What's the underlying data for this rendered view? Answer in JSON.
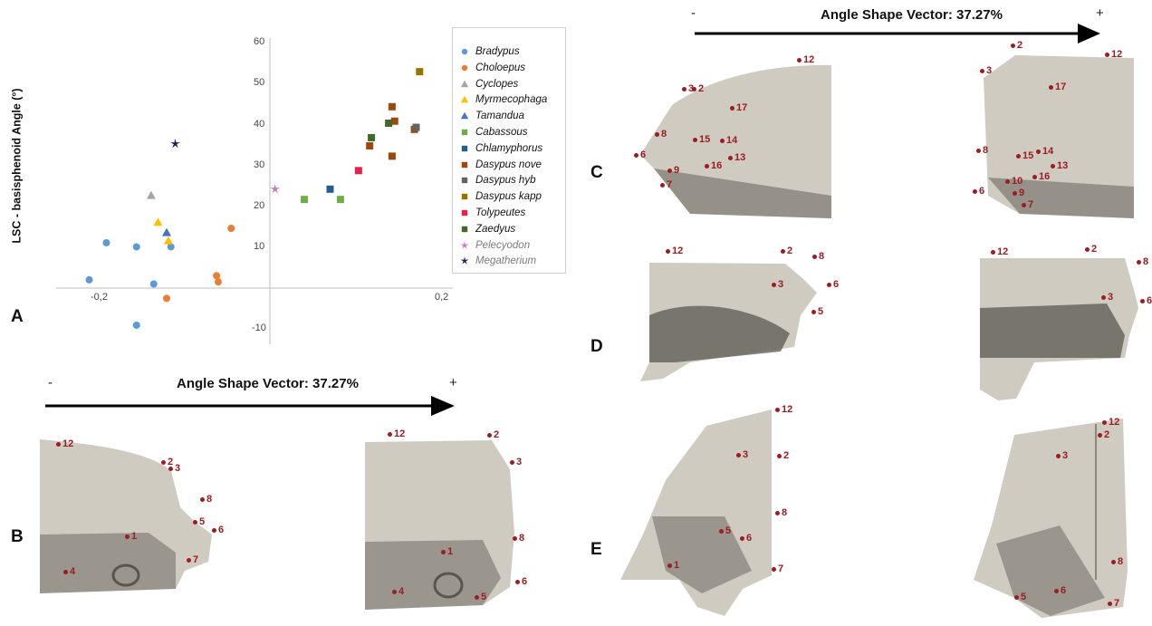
{
  "panels": {
    "A": "A",
    "B": "B",
    "C": "C",
    "D": "D",
    "E": "E"
  },
  "shape_vector": {
    "label": "Angle Shape Vector: 37.27%",
    "minus": "-",
    "plus": "+"
  },
  "chart_data": {
    "type": "scatter",
    "ylabel": "LSC - basisphenoid Angle (°)",
    "xlabel": "",
    "xlim": [
      -0.22,
      0.2
    ],
    "ylim": [
      -13,
      60
    ],
    "x_ticks": [
      "-0,2",
      "0,2"
    ],
    "y_ticks": [
      "60",
      "50",
      "40",
      "30",
      "20",
      "10",
      "-10"
    ],
    "legend_position": "right",
    "series": [
      {
        "name": "Bradypus",
        "marker": "circle",
        "color": "#5b9bd5",
        "points": [
          [
            -0.21,
            2
          ],
          [
            -0.19,
            11
          ],
          [
            -0.155,
            10
          ],
          [
            -0.135,
            1
          ],
          [
            -0.115,
            10
          ],
          [
            -0.155,
            -9
          ]
        ]
      },
      {
        "name": "Choloepus",
        "marker": "circle",
        "color": "#ed7d31",
        "points": [
          [
            -0.12,
            -2.5
          ],
          [
            -0.062,
            3
          ],
          [
            -0.06,
            1.5
          ],
          [
            -0.045,
            14.5
          ]
        ]
      },
      {
        "name": "Cyclopes",
        "marker": "triangle",
        "color": "#a5a5a5",
        "points": [
          [
            -0.138,
            22.5
          ]
        ]
      },
      {
        "name": "Myrmecophaga",
        "marker": "triangle",
        "color": "#ffc000",
        "points": [
          [
            -0.13,
            16
          ],
          [
            -0.118,
            11.5
          ]
        ]
      },
      {
        "name": "Tamandua",
        "marker": "triangle",
        "color": "#4472c4",
        "points": [
          [
            -0.12,
            13.5
          ]
        ]
      },
      {
        "name": "Cabassous",
        "marker": "square",
        "color": "#70ad47",
        "points": [
          [
            0.04,
            21.5
          ],
          [
            0.082,
            21.5
          ]
        ]
      },
      {
        "name": "Chlamyphorus",
        "marker": "square",
        "color": "#255e91",
        "points": [
          [
            0.07,
            24
          ]
        ]
      },
      {
        "name": "Dasypus nove",
        "marker": "square",
        "color": "#9e480e",
        "points": [
          [
            0.116,
            34.5
          ],
          [
            0.142,
            44
          ],
          [
            0.145,
            40.5
          ],
          [
            0.142,
            32
          ],
          [
            0.168,
            38.5
          ]
        ]
      },
      {
        "name": "Dasypus hyb",
        "marker": "square",
        "color": "#636363",
        "points": [
          [
            0.17,
            39
          ]
        ]
      },
      {
        "name": "Dasypus kapp",
        "marker": "square",
        "color": "#997300",
        "points": [
          [
            0.174,
            52.5
          ]
        ]
      },
      {
        "name": "Tolypeutes",
        "marker": "square",
        "color": "#e8214a",
        "points": [
          [
            0.103,
            28.5
          ]
        ]
      },
      {
        "name": "Zaedyus",
        "marker": "square",
        "color": "#43682b",
        "points": [
          [
            0.118,
            36.5
          ],
          [
            0.138,
            40
          ]
        ]
      },
      {
        "name": "Pelecyodon",
        "marker": "star",
        "color": "#c875c4",
        "fossil": true,
        "points": [
          [
            0.006,
            24
          ]
        ]
      },
      {
        "name": "Megatherium",
        "marker": "star",
        "color": "#1f1f5e",
        "fossil": true,
        "points": [
          [
            -0.11,
            35
          ]
        ]
      }
    ]
  },
  "specimen_labels": {
    "B_left": [
      "12",
      "2",
      "3",
      "8",
      "5",
      "6",
      "7",
      "4",
      "1"
    ],
    "B_right": [
      "12",
      "2",
      "3",
      "8",
      "6",
      "5",
      "1",
      "4"
    ],
    "C_left": [
      "12",
      "3",
      "2",
      "17",
      "8",
      "6",
      "15",
      "14",
      "16",
      "13",
      "9",
      "7"
    ],
    "C_right": [
      "2",
      "12",
      "3",
      "17",
      "8",
      "14",
      "15",
      "13",
      "16",
      "10",
      "9",
      "6",
      "7"
    ],
    "D_left": [
      "12",
      "2",
      "8",
      "3",
      "6",
      "5"
    ],
    "D_right": [
      "12",
      "2",
      "8",
      "3",
      "6"
    ],
    "E_left": [
      "12",
      "3",
      "2",
      "8",
      "5",
      "6",
      "7",
      "1"
    ],
    "E_right": [
      "12",
      "2",
      "3",
      "8",
      "5",
      "6",
      "7"
    ]
  },
  "colors": {
    "landmark": "#9b1c22",
    "bone": "#cfcbc1",
    "bone_shadow": "#6f6b62"
  }
}
